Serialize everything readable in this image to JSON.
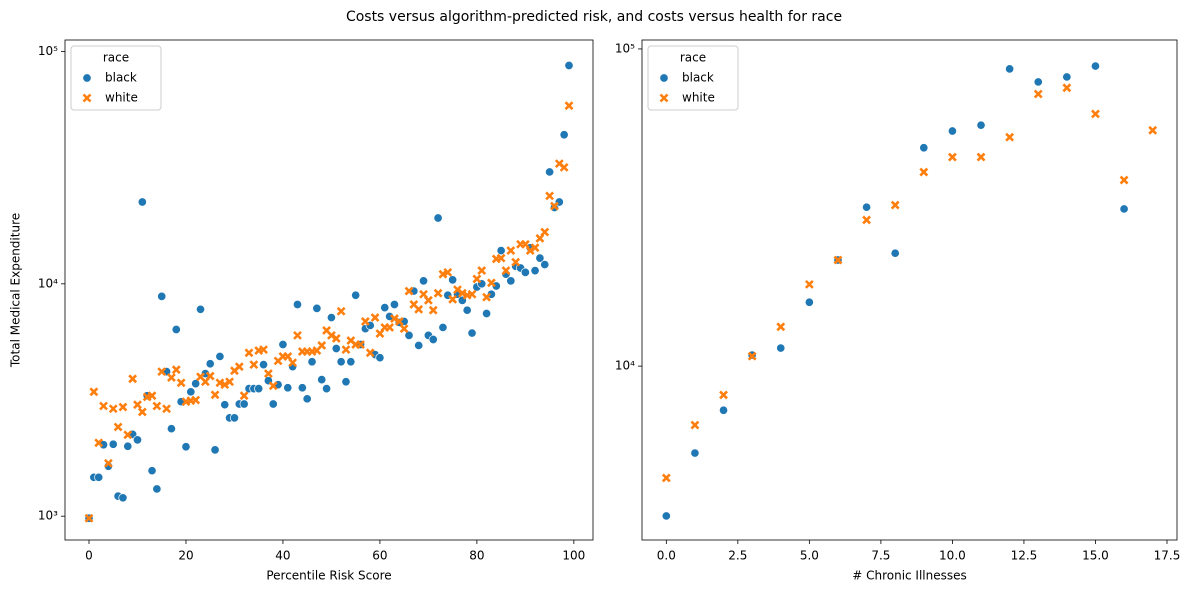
{
  "title": "Costs versus algorithm-predicted risk, and costs versus health for race",
  "chart_data": [
    {
      "type": "scatter",
      "xlabel": "Percentile Risk Score",
      "ylabel": "Total Medical Expenditure",
      "yscale": "log",
      "legend": "upper left",
      "legend_title": "race",
      "xlim": [
        -4.95,
        103.95
      ],
      "xticks": [
        0,
        20,
        40,
        60,
        80,
        100
      ],
      "ylim": [
        790,
        112000
      ],
      "yticks": [
        {
          "value": 1000,
          "label": "10³"
        },
        {
          "value": 10000,
          "label": "10⁴"
        },
        {
          "value": 100000,
          "label": "10⁵"
        }
      ],
      "x": [
        0,
        1,
        2,
        3,
        4,
        5,
        6,
        7,
        8,
        9,
        10,
        11,
        12,
        13,
        14,
        15,
        16,
        17,
        18,
        19,
        20,
        21,
        22,
        23,
        24,
        25,
        26,
        27,
        28,
        29,
        30,
        31,
        32,
        33,
        34,
        35,
        36,
        37,
        38,
        39,
        40,
        41,
        42,
        43,
        44,
        45,
        46,
        47,
        48,
        49,
        50,
        51,
        52,
        53,
        54,
        55,
        56,
        57,
        58,
        59,
        60,
        61,
        62,
        63,
        64,
        65,
        66,
        67,
        68,
        69,
        70,
        71,
        72,
        73,
        74,
        75,
        76,
        77,
        78,
        79,
        80,
        81,
        82,
        83,
        84,
        85,
        86,
        87,
        88,
        89,
        90,
        91,
        92,
        93,
        94,
        95,
        96,
        97,
        98,
        99
      ],
      "series": [
        {
          "name": "black",
          "color": "#1f77b4",
          "marker": "circle",
          "values": [
            980,
            1470,
            1470,
            2030,
            1640,
            2040,
            1220,
            1200,
            2000,
            2250,
            2130,
            22500,
            3300,
            1570,
            1310,
            8830,
            4190,
            2380,
            6360,
            3110,
            1990,
            3430,
            3720,
            7770,
            4110,
            4530,
            1930,
            4870,
            3020,
            2650,
            2650,
            3040,
            3040,
            3540,
            3540,
            3540,
            4490,
            3830,
            3040,
            3680,
            5480,
            3570,
            4400,
            8150,
            3570,
            3200,
            4620,
            7840,
            3870,
            3540,
            7160,
            5270,
            4620,
            3790,
            4620,
            8930,
            5480,
            6410,
            6620,
            4960,
            4810,
            7900,
            7240,
            8150,
            6820,
            6890,
            6000,
            9310,
            5430,
            10300,
            6000,
            5760,
            19200,
            6490,
            8930,
            10400,
            9020,
            8490,
            7700,
            6140,
            9690,
            10000,
            7450,
            9020,
            9790,
            13900,
            11000,
            10300,
            11900,
            11700,
            11200,
            14300,
            11400,
            12900,
            12100,
            30300,
            21300,
            22500,
            43800,
            87000
          ]
        },
        {
          "name": "white",
          "color": "#ff7f0e",
          "marker": "x",
          "values": [
            980,
            3430,
            2070,
            2980,
            1690,
            2900,
            2420,
            2950,
            2240,
            3900,
            3020,
            2810,
            3260,
            3300,
            2980,
            4190,
            2900,
            3950,
            4270,
            3750,
            3110,
            3140,
            3160,
            3980,
            3790,
            4010,
            3330,
            3750,
            3680,
            3790,
            4230,
            4400,
            3300,
            5050,
            4490,
            5160,
            5210,
            4110,
            3640,
            4660,
            4870,
            4870,
            4580,
            6000,
            5110,
            5110,
            5110,
            5160,
            5430,
            6300,
            6000,
            5820,
            7620,
            5210,
            5700,
            5480,
            5480,
            6890,
            5050,
            7160,
            6110,
            6490,
            6490,
            7090,
            6890,
            6410,
            9310,
            8150,
            7770,
            9020,
            8490,
            7700,
            9110,
            11000,
            11200,
            8580,
            9440,
            9110,
            8930,
            9020,
            10500,
            11400,
            8760,
            10100,
            12800,
            12900,
            11400,
            13900,
            12400,
            14800,
            14800,
            13900,
            14300,
            15700,
            16700,
            23900,
            21600,
            32900,
            31700,
            58400
          ]
        }
      ]
    },
    {
      "type": "scatter",
      "xlabel": "# Chronic Illnesses",
      "yscale": "log",
      "legend": "upper left",
      "legend_title": "race",
      "xlim": [
        -0.85,
        17.85
      ],
      "xticks": [
        {
          "value": 0,
          "label": "0.0"
        },
        2.5,
        {
          "value": 5,
          "label": "5.0"
        },
        7.5,
        {
          "value": 10,
          "label": "10.0"
        },
        12.5,
        {
          "value": 15,
          "label": "15.0"
        },
        17.5
      ],
      "ylim": [
        2830,
        106700
      ],
      "yticks": [
        {
          "value": 10000,
          "label": "10⁴"
        },
        {
          "value": 100000,
          "label": "10⁵"
        }
      ],
      "series": [
        {
          "name": "black",
          "color": "#1f77b4",
          "marker": "circle",
          "x": [
            0,
            1,
            2,
            3,
            4,
            5,
            6,
            7,
            8,
            9,
            10,
            11,
            12,
            13,
            14,
            15,
            16
          ],
          "values": [
            3370,
            5320,
            7260,
            10830,
            11400,
            15900,
            21600,
            31700,
            22700,
            48800,
            55100,
            57500,
            86500,
            78700,
            81600,
            88300,
            31300
          ]
        },
        {
          "name": "white",
          "color": "#ff7f0e",
          "marker": "x",
          "x": [
            0,
            1,
            2,
            3,
            4,
            5,
            6,
            7,
            8,
            9,
            10,
            11,
            12,
            13,
            14,
            15,
            16,
            17
          ],
          "values": [
            4440,
            6520,
            8110,
            10750,
            13300,
            18100,
            21600,
            28900,
            32200,
            40900,
            45600,
            45600,
            52700,
            72100,
            75400,
            62400,
            38600,
            55400
          ]
        }
      ]
    }
  ]
}
